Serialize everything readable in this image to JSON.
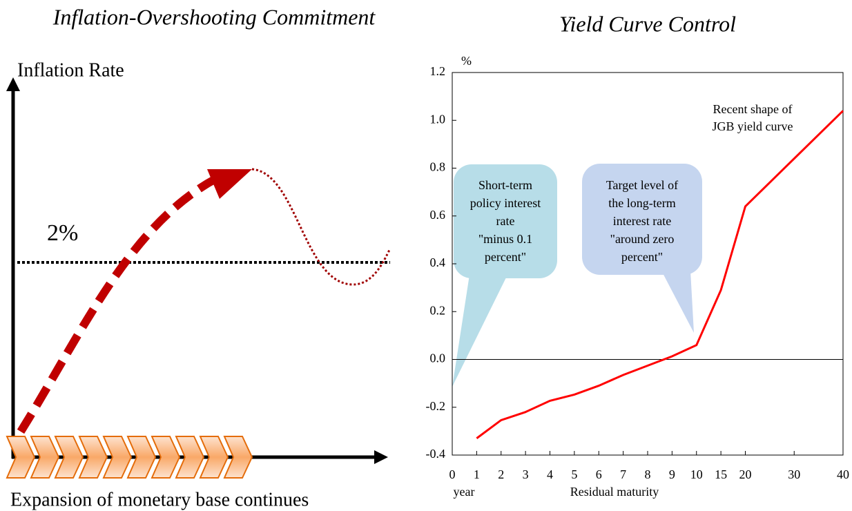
{
  "diagram": {
    "title": "Inflation-Overshooting Commitment",
    "y_label": "Inflation Rate",
    "target_label": "2%",
    "x_label": "Expansion of monetary base continues"
  },
  "chart_data": {
    "type": "line",
    "title": "Yield Curve Control",
    "y_unit": "%",
    "x_unit": "year",
    "x_label": "Residual maturity",
    "x": [
      1,
      2,
      3,
      4,
      5,
      6,
      7,
      8,
      9,
      10,
      15,
      20,
      40
    ],
    "series": [
      {
        "color": "#ff0000",
        "values": [
          -0.33,
          -0.254,
          -0.22,
          -0.173,
          -0.147,
          -0.11,
          -0.065,
          -0.026,
          0.013,
          0.06,
          0.29,
          0.64,
          1.04
        ]
      }
    ],
    "xlim": [
      0,
      40
    ],
    "xticks": [
      0,
      1,
      2,
      3,
      4,
      5,
      6,
      7,
      8,
      9,
      10,
      15,
      20,
      30,
      40
    ],
    "ylim": [
      -0.4,
      1.2
    ],
    "yticks": [
      -0.4,
      -0.2,
      {
        "value": 0,
        "label": "0.0"
      },
      0.2,
      0.4,
      0.6,
      0.8,
      {
        "value": 1,
        "label": "1.0"
      },
      1.2
    ],
    "grid": false,
    "annotations": [
      {
        "lines": [
          "Recent shape of",
          "JGB yield curve"
        ]
      },
      {
        "lines": [
          "Short-term",
          "policy interest",
          "rate",
          "\"minus 0.1",
          "percent\""
        ]
      },
      {
        "lines": [
          "Target level of",
          "the long-term",
          "interest rate",
          "\"around zero",
          "percent\""
        ]
      }
    ]
  }
}
